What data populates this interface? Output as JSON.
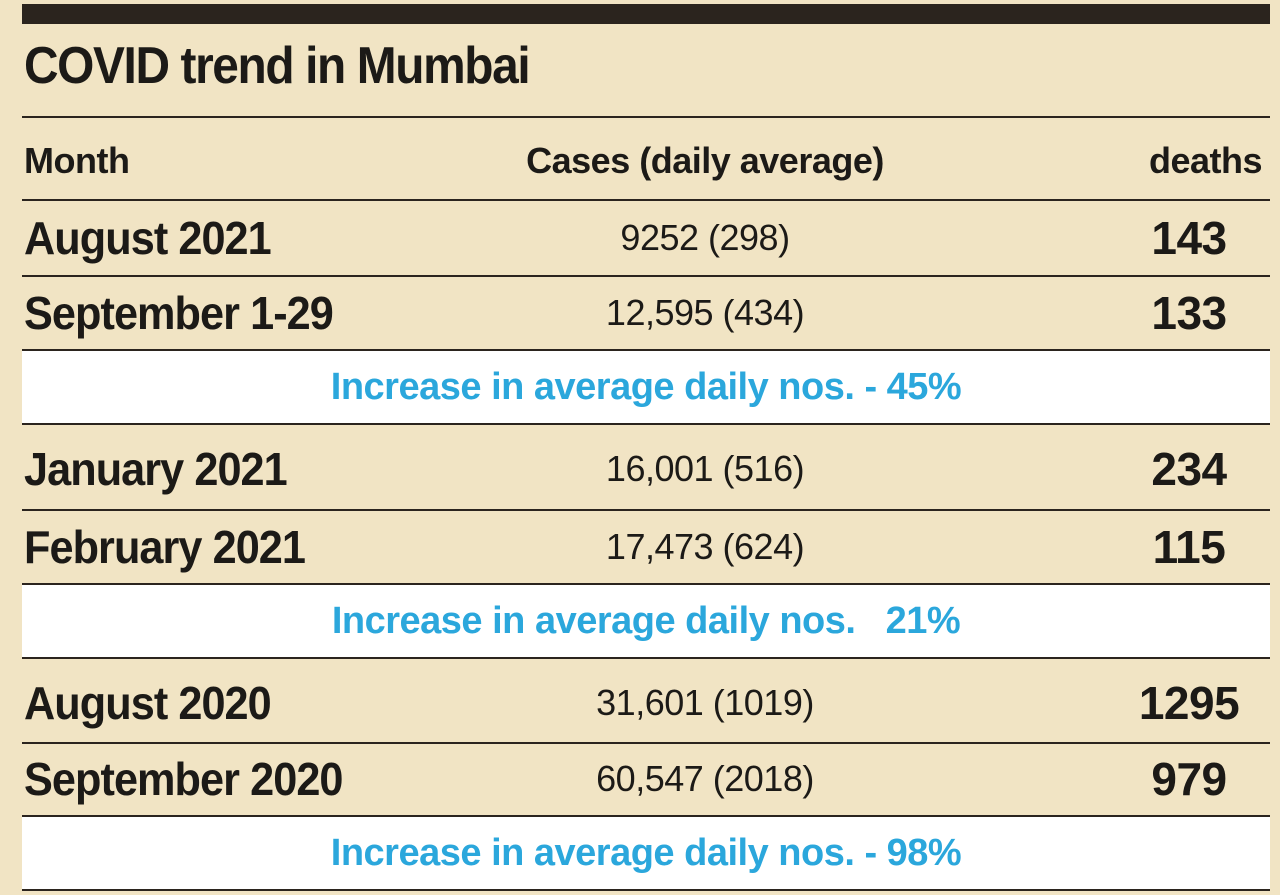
{
  "title": "COVID trend in Mumbai",
  "headers": {
    "month": "Month",
    "cases": "Cases (daily average)",
    "deaths": "deaths"
  },
  "groups": [
    {
      "rows": [
        {
          "month": "August 2021",
          "cases": "9252 (298)",
          "deaths": "143"
        },
        {
          "month": "September 1-29",
          "cases": "12,595 (434)",
          "deaths": "133"
        }
      ],
      "note": "Increase in average daily nos. - 45%"
    },
    {
      "rows": [
        {
          "month": "January 2021",
          "cases": "16,001 (516)",
          "deaths": "234"
        },
        {
          "month": "February 2021",
          "cases": "17,473 (624)",
          "deaths": "115"
        }
      ],
      "note": "Increase in average daily nos.   21%"
    },
    {
      "rows": [
        {
          "month": "August 2020",
          "cases": "31,601 (1019)",
          "deaths": "1295"
        },
        {
          "month": "September 2020",
          "cases": "60,547 (2018)",
          "deaths": "979"
        }
      ],
      "note": "Increase in average daily nos. - 98%"
    }
  ],
  "colors": {
    "background": "#f1e4c4",
    "rule": "#2b241e",
    "note_text": "#2ba7dc",
    "note_background": "#ffffff"
  }
}
